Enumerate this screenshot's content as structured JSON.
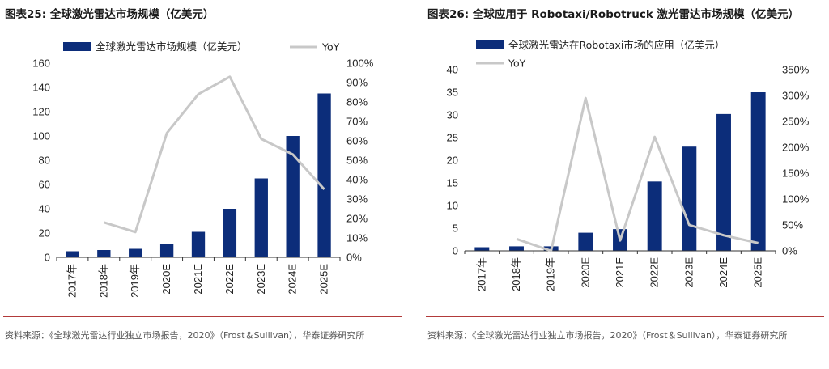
{
  "colors": {
    "bar": "#0c2d7a",
    "line": "#c8c8c8",
    "rule": "#b23a3a"
  },
  "charts": [
    {
      "title": "图表25:   全球激光雷达市场规模（亿美元）",
      "source": "资料来源：《全球激光雷达行业独立市场报告，2020》（Frost＆Sullivan），华泰证券研究所"
    },
    {
      "title": "图表26:   全球应用于 Robotaxi/Robotruck 激光雷达市场规模（亿美元）",
      "source": "资料来源：《全球激光雷达行业独立市场报告，2020》（Frost＆Sullivan），华泰证券研究所"
    }
  ],
  "chart_data": [
    {
      "type": "bar",
      "categories": [
        "2017年",
        "2018年",
        "2019年",
        "2020E",
        "2021E",
        "2022E",
        "2023E",
        "2024E",
        "2025E"
      ],
      "series": [
        {
          "name": "全球激光雷达市场规模（亿美元）",
          "type": "bar",
          "axis": "left",
          "values": [
            5,
            6,
            7,
            11,
            21,
            40,
            65,
            100,
            135
          ]
        },
        {
          "name": "YoY",
          "type": "line",
          "axis": "right",
          "values": [
            null,
            18,
            13,
            64,
            84,
            93,
            61,
            53,
            35
          ]
        }
      ],
      "y_left": {
        "min": 0,
        "max": 160,
        "step": 20,
        "ticks": [
          "0",
          "20",
          "40",
          "60",
          "80",
          "100",
          "120",
          "140",
          "160"
        ]
      },
      "y_right": {
        "min": 0,
        "max": 100,
        "step": 10,
        "ticks": [
          "0%",
          "10%",
          "20%",
          "30%",
          "40%",
          "50%",
          "60%",
          "70%",
          "80%",
          "90%",
          "100%"
        ]
      },
      "legend": "top"
    },
    {
      "type": "bar",
      "categories": [
        "2017年",
        "2018年",
        "2019年",
        "2020E",
        "2021E",
        "2022E",
        "2023E",
        "2024E",
        "2025E"
      ],
      "series": [
        {
          "name": "全球激光雷达在Robotaxi市场的应用（亿美元）",
          "type": "bar",
          "axis": "left",
          "values": [
            0.8,
            1.0,
            1.0,
            4.0,
            4.8,
            15.3,
            23.0,
            30.2,
            35.0
          ]
        },
        {
          "name": "YoY",
          "type": "line",
          "axis": "right",
          "values": [
            null,
            23,
            0,
            295,
            20,
            220,
            50,
            30,
            15
          ]
        }
      ],
      "y_left": {
        "min": 0,
        "max": 40,
        "step": 5,
        "ticks": [
          "0",
          "5",
          "10",
          "15",
          "20",
          "25",
          "30",
          "35",
          "40"
        ]
      },
      "y_right": {
        "min": 0,
        "max": 350,
        "step": 50,
        "ticks": [
          "0%",
          "50%",
          "100%",
          "150%",
          "200%",
          "250%",
          "300%",
          "350%"
        ]
      },
      "legend": "top"
    }
  ]
}
